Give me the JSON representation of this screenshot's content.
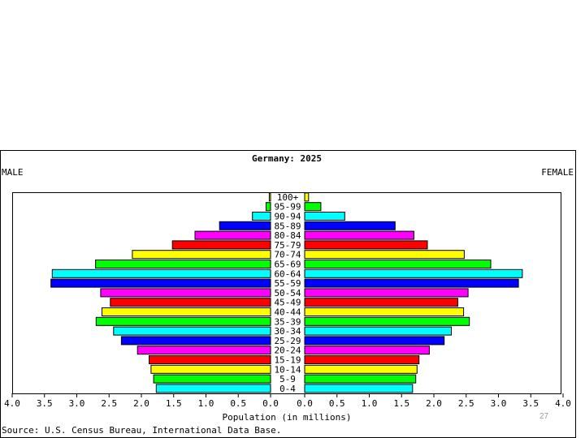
{
  "chart_data": {
    "type": "bar",
    "title": "Germany: 2025",
    "left_label": "MALE",
    "right_label": "FEMALE",
    "xlabel": "Population (in millions)",
    "source": "Source: U.S. Census Bureau, International Data Base.",
    "xlim": [
      0,
      4.0
    ],
    "xticks": [
      "0.0",
      "0.5",
      "1.0",
      "1.5",
      "2.0",
      "2.5",
      "3.0",
      "3.5",
      "4.0"
    ],
    "categories": [
      "100+",
      "95-99",
      "90-94",
      "85-89",
      "80-84",
      "75-79",
      "70-74",
      "65-69",
      "60-64",
      "55-59",
      "50-54",
      "45-49",
      "40-44",
      "35-39",
      "30-34",
      "25-29",
      "20-24",
      "15-19",
      "10-14",
      "5-9",
      "0-4"
    ],
    "colors": [
      "#ffff00",
      "#00ff00",
      "#00ffff",
      "#0000ff",
      "#ff00ff",
      "#ff0000",
      "#ffff00",
      "#00ff00",
      "#00ffff",
      "#0000ff",
      "#ff00ff",
      "#ff0000",
      "#ffff00",
      "#00ff00",
      "#00ffff",
      "#0000ff",
      "#ff00ff",
      "#ff0000",
      "#ffff00",
      "#00ff00",
      "#00ffff"
    ],
    "series": [
      {
        "name": "MALE",
        "values": [
          0.02,
          0.07,
          0.28,
          0.79,
          1.17,
          1.52,
          2.14,
          2.71,
          3.38,
          3.4,
          2.63,
          2.48,
          2.61,
          2.7,
          2.43,
          2.31,
          2.06,
          1.88,
          1.85,
          1.81,
          1.77
        ]
      },
      {
        "name": "FEMALE",
        "values": [
          0.06,
          0.25,
          0.62,
          1.4,
          1.69,
          1.9,
          2.47,
          2.88,
          3.37,
          3.31,
          2.53,
          2.37,
          2.46,
          2.55,
          2.27,
          2.16,
          1.93,
          1.77,
          1.74,
          1.72,
          1.67
        ]
      }
    ]
  },
  "slide_number": "27"
}
